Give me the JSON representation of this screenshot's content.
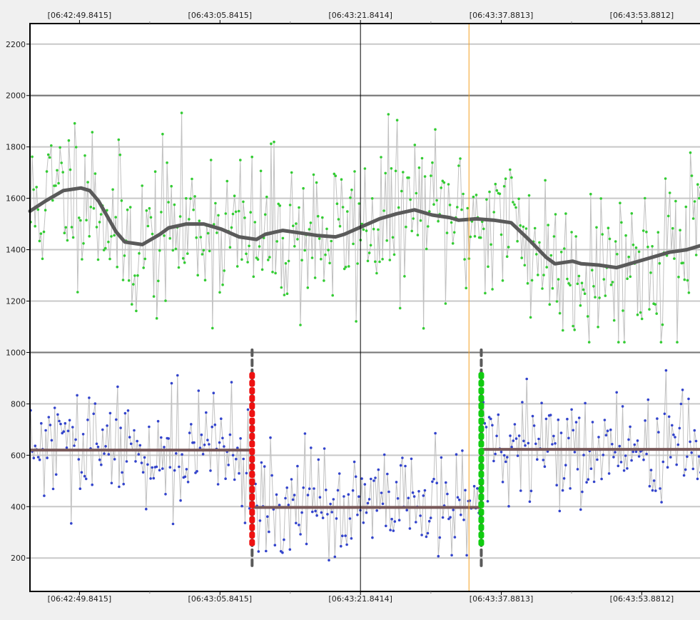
{
  "chart_data": {
    "type": "scatter",
    "title": "",
    "xlabel": "",
    "ylabel": "",
    "x_tick_labels": [
      "[06:42:49.8415]",
      "[06:43:05.8415]",
      "[06:43:21.8414]",
      "[06:43:37.8813]",
      "[06:43:53.8812]"
    ],
    "x_tick_seconds": [
      49.8415,
      65.8415,
      81.8414,
      97.8813,
      113.8812
    ],
    "xlim_seconds": [
      44.2,
      121.0
    ],
    "y_ticks": [
      200,
      400,
      600,
      800,
      1000,
      1200,
      1400,
      1600,
      1800,
      2000,
      2200
    ],
    "ylim": [
      70,
      2280
    ],
    "reference_lines_y": [
      1000,
      2000
    ],
    "cursor_lines": [
      {
        "x_seconds": 81.8414,
        "color": "#000000",
        "name": ""
      },
      {
        "x_seconds": 94.2,
        "color": "#f5a020",
        "name": ""
      }
    ],
    "series": [
      {
        "name": "",
        "role": "upper-raw",
        "color": "#33cc33",
        "line_color": "#c0c0c0",
        "noise_scale": 160,
        "count": 460,
        "seed": 11,
        "marker": "point"
      },
      {
        "name": "",
        "role": "upper-smoothed",
        "color": "#5a5a5a",
        "x_seconds": [
          44.2,
          46,
          48,
          50,
          51,
          52,
          54,
          55,
          57,
          59,
          60,
          62,
          64,
          66,
          68,
          70,
          71,
          73,
          75,
          77,
          79,
          80,
          82,
          84,
          86,
          88,
          90,
          92,
          93,
          95,
          97,
          99,
          101,
          103,
          104,
          106,
          107,
          109,
          111,
          112,
          114,
          116,
          117,
          119,
          121
        ],
        "y": [
          1550,
          1590,
          1630,
          1640,
          1630,
          1590,
          1470,
          1430,
          1420,
          1460,
          1485,
          1500,
          1500,
          1480,
          1450,
          1440,
          1460,
          1475,
          1465,
          1455,
          1450,
          1460,
          1490,
          1520,
          1540,
          1555,
          1535,
          1525,
          1515,
          1520,
          1515,
          1505,
          1440,
          1370,
          1345,
          1355,
          1345,
          1340,
          1330,
          1340,
          1360,
          1380,
          1390,
          1400,
          1420
        ]
      },
      {
        "name": "",
        "role": "lower-raw",
        "color": "#3344cc",
        "line_color": "#c0c0c0",
        "noise_scale": 110,
        "count": 450,
        "seed": 29,
        "marker": "point"
      },
      {
        "name": "",
        "role": "lower-level",
        "color": "#7a5a5a",
        "segments": [
          {
            "x_start": 44.2,
            "x_end": 69.5,
            "y": 620
          },
          {
            "x_start": 69.5,
            "x_end": 95.6,
            "y": 397
          },
          {
            "x_start": 95.6,
            "x_end": 121.0,
            "y": 623
          }
        ]
      }
    ],
    "change_points": [
      {
        "x_seconds": 69.5,
        "color": "#ee1111",
        "y_from": 260,
        "y_to": 910,
        "whisker_from": 170,
        "whisker_to": 1010
      },
      {
        "x_seconds": 95.6,
        "color": "#11cc11",
        "y_from": 260,
        "y_to": 910,
        "whisker_from": 170,
        "whisker_to": 1010
      }
    ],
    "grid": true,
    "legend": "none"
  }
}
